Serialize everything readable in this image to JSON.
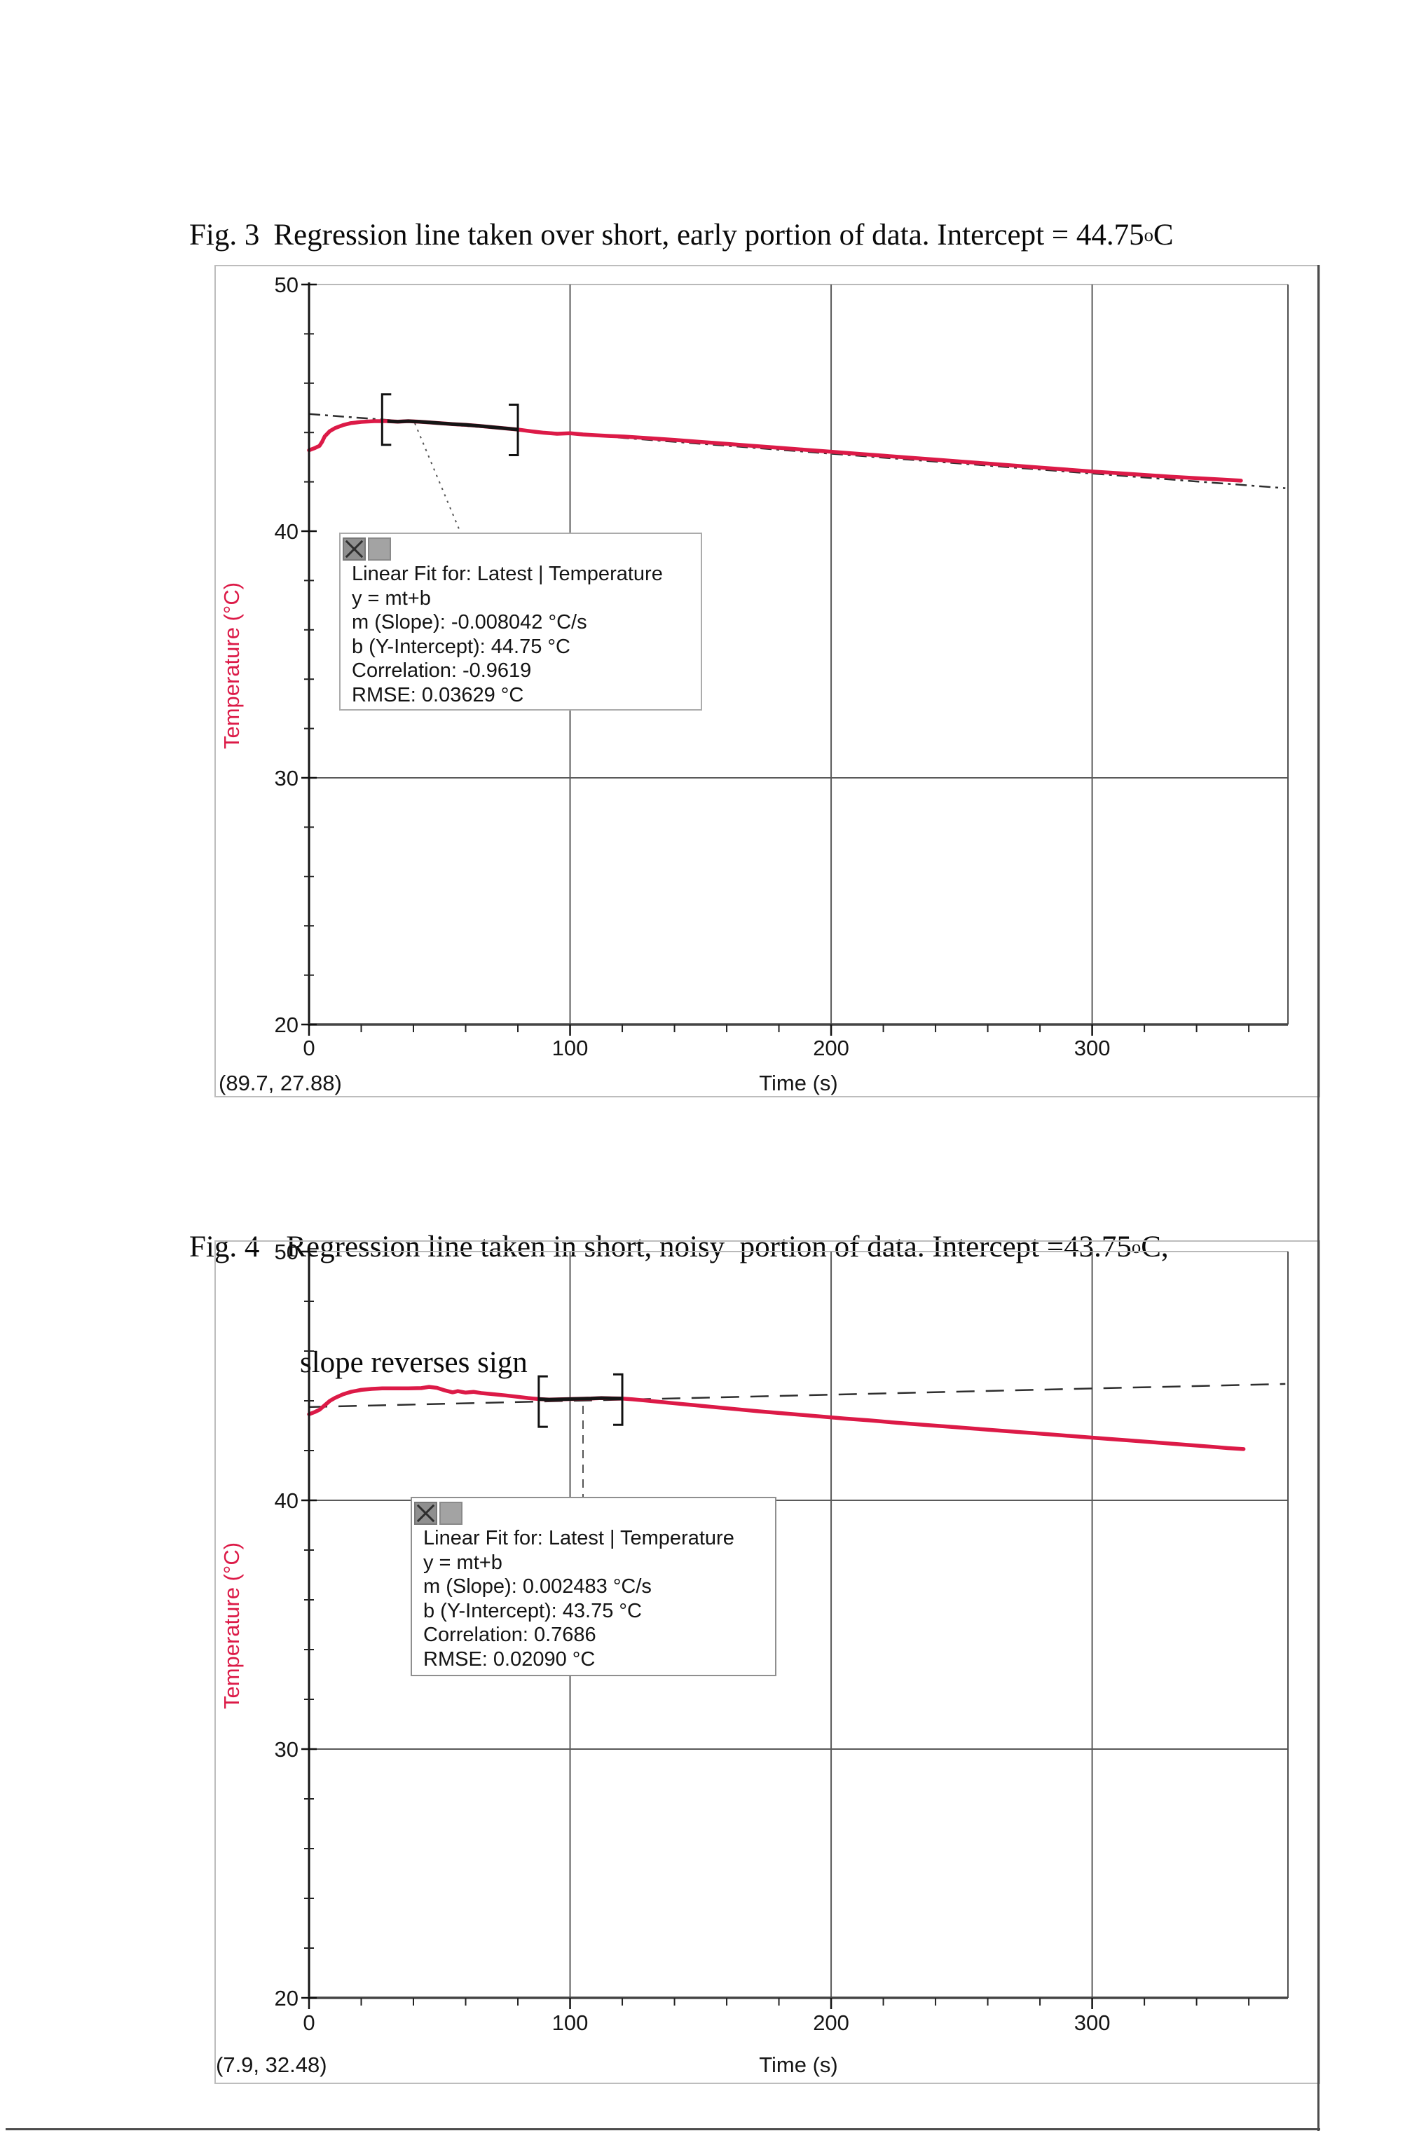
{
  "page": {
    "background": "#ffffff"
  },
  "colors": {
    "series_red": "#dc1a47",
    "grid_dark": "#5a5a5a",
    "plot_right_edge": "#4f4f4f",
    "top_boundary": "#b9b9b9",
    "y_axis": "#141414",
    "x_axis": "#454545",
    "fit_dash": "#2e2e2e",
    "panel_border": "#bdbdbd",
    "tick_text": "#161616",
    "page_edge": "#4c4c4c"
  },
  "figures": [
    {
      "caption": {
        "prefix": "Fig. 3",
        "body": "Regression line taken over short, early portion of data. Intercept = 44.75",
        "sup": "o",
        "tail": "C"
      }
    },
    {
      "caption": {
        "prefix": "Fig. 4",
        "body": "Regression line taken in short, noisy  portion of data. Intercept =43.75",
        "sup": "o",
        "tail": "C,",
        "line2": "slope reverses sign"
      }
    }
  ],
  "chart_data": [
    {
      "type": "line",
      "title": "",
      "xlabel": "Time (s)",
      "ylabel": "Temperature (°C)",
      "xlim": [
        0,
        375
      ],
      "ylim": [
        20,
        50
      ],
      "xticks": [
        0,
        100,
        200,
        300
      ],
      "yticks": [
        20,
        30,
        40,
        50
      ],
      "x_minor_step": 20,
      "y_minor_step": 2,
      "v_gridlines": [
        100,
        200,
        300
      ],
      "h_gridlines": [
        30
      ],
      "grid": "partial",
      "legend_position": "none",
      "cursor_readout": "(89.7, 27.88)",
      "series": [
        {
          "name": "Latest | Temperature",
          "color": "#dc1a47",
          "points": [
            [
              0,
              43.28
            ],
            [
              2,
              43.36
            ],
            [
              4,
              43.46
            ],
            [
              5,
              43.62
            ],
            [
              6,
              43.84
            ],
            [
              8,
              44.06
            ],
            [
              10,
              44.18
            ],
            [
              13,
              44.3
            ],
            [
              16,
              44.38
            ],
            [
              20,
              44.43
            ],
            [
              25,
              44.46
            ],
            [
              30,
              44.46
            ],
            [
              34,
              44.44
            ],
            [
              38,
              44.46
            ],
            [
              42,
              44.44
            ],
            [
              46,
              44.41
            ],
            [
              50,
              44.38
            ],
            [
              55,
              44.34
            ],
            [
              60,
              44.31
            ],
            [
              65,
              44.27
            ],
            [
              70,
              44.22
            ],
            [
              75,
              44.17
            ],
            [
              80,
              44.12
            ],
            [
              85,
              44.05
            ],
            [
              90,
              43.99
            ],
            [
              95,
              43.95
            ],
            [
              100,
              43.97
            ],
            [
              105,
              43.92
            ],
            [
              110,
              43.89
            ],
            [
              115,
              43.86
            ],
            [
              120,
              43.84
            ],
            [
              130,
              43.77
            ],
            [
              140,
              43.7
            ],
            [
              150,
              43.62
            ],
            [
              160,
              43.54
            ],
            [
              170,
              43.46
            ],
            [
              180,
              43.38
            ],
            [
              190,
              43.3
            ],
            [
              200,
              43.22
            ],
            [
              210,
              43.14
            ],
            [
              220,
              43.06
            ],
            [
              230,
              42.98
            ],
            [
              240,
              42.9
            ],
            [
              250,
              42.82
            ],
            [
              260,
              42.74
            ],
            [
              270,
              42.66
            ],
            [
              280,
              42.58
            ],
            [
              290,
              42.5
            ],
            [
              300,
              42.42
            ],
            [
              310,
              42.35
            ],
            [
              320,
              42.28
            ],
            [
              330,
              42.21
            ],
            [
              340,
              42.15
            ],
            [
              350,
              42.09
            ],
            [
              357,
              42.05
            ]
          ]
        }
      ],
      "fit": {
        "slope": -0.008042,
        "intercept": 44.75,
        "correlation": -0.9619,
        "rmse": 0.03629,
        "region": [
          28,
          80
        ],
        "box_lines": [
          "Linear Fit for: Latest | Temperature",
          "y = mt+b",
          "m (Slope): -0.008042 °C/s",
          "b (Y-Intercept): 44.75 °C",
          "Correlation: -0.9619",
          "RMSE: 0.03629 °C"
        ]
      }
    },
    {
      "type": "line",
      "title": "",
      "xlabel": "Time (s)",
      "ylabel": "Temperature (°C)",
      "xlim": [
        0,
        375
      ],
      "ylim": [
        20,
        50
      ],
      "xticks": [
        0,
        100,
        200,
        300
      ],
      "yticks": [
        20,
        30,
        40,
        50
      ],
      "x_minor_step": 20,
      "y_minor_step": 2,
      "v_gridlines": [
        100,
        200,
        300
      ],
      "h_gridlines": [
        30,
        40
      ],
      "grid": "partial",
      "legend_position": "none",
      "cursor_readout": "(7.9, 32.48)",
      "series": [
        {
          "name": "Latest | Temperature",
          "color": "#dc1a47",
          "points": [
            [
              0,
              43.46
            ],
            [
              2,
              43.54
            ],
            [
              4,
              43.64
            ],
            [
              6,
              43.82
            ],
            [
              8,
              44.0
            ],
            [
              10,
              44.12
            ],
            [
              13,
              44.26
            ],
            [
              16,
              44.36
            ],
            [
              20,
              44.44
            ],
            [
              24,
              44.48
            ],
            [
              28,
              44.5
            ],
            [
              33,
              44.5
            ],
            [
              38,
              44.5
            ],
            [
              43,
              44.51
            ],
            [
              46,
              44.56
            ],
            [
              49,
              44.52
            ],
            [
              52,
              44.42
            ],
            [
              55,
              44.34
            ],
            [
              57,
              44.39
            ],
            [
              60,
              44.33
            ],
            [
              63,
              44.36
            ],
            [
              66,
              44.31
            ],
            [
              70,
              44.27
            ],
            [
              75,
              44.22
            ],
            [
              80,
              44.16
            ],
            [
              84,
              44.11
            ],
            [
              88,
              44.07
            ],
            [
              92,
              44.05
            ],
            [
              96,
              44.06
            ],
            [
              100,
              44.07
            ],
            [
              104,
              44.08
            ],
            [
              108,
              44.09
            ],
            [
              112,
              44.11
            ],
            [
              116,
              44.1
            ],
            [
              120,
              44.09
            ],
            [
              124,
              44.06
            ],
            [
              128,
              44.02
            ],
            [
              134,
              43.96
            ],
            [
              140,
              43.9
            ],
            [
              148,
              43.82
            ],
            [
              156,
              43.74
            ],
            [
              164,
              43.66
            ],
            [
              172,
              43.58
            ],
            [
              180,
              43.51
            ],
            [
              188,
              43.44
            ],
            [
              196,
              43.37
            ],
            [
              205,
              43.29
            ],
            [
              215,
              43.21
            ],
            [
              225,
              43.12
            ],
            [
              235,
              43.04
            ],
            [
              245,
              42.96
            ],
            [
              255,
              42.88
            ],
            [
              265,
              42.8
            ],
            [
              275,
              42.72
            ],
            [
              285,
              42.64
            ],
            [
              295,
              42.56
            ],
            [
              305,
              42.48
            ],
            [
              315,
              42.4
            ],
            [
              325,
              42.32
            ],
            [
              335,
              42.24
            ],
            [
              345,
              42.16
            ],
            [
              352,
              42.1
            ],
            [
              358,
              42.06
            ]
          ]
        }
      ],
      "fit": {
        "slope": 0.002483,
        "intercept": 43.75,
        "correlation": 0.7686,
        "rmse": 0.0209,
        "region": [
          88,
          120
        ],
        "box_lines": [
          "Linear Fit for: Latest | Temperature",
          "y = mt+b",
          "m (Slope): 0.002483 °C/s",
          "b (Y-Intercept): 43.75 °C",
          "Correlation: 0.7686",
          "RMSE: 0.02090 °C"
        ]
      }
    }
  ]
}
